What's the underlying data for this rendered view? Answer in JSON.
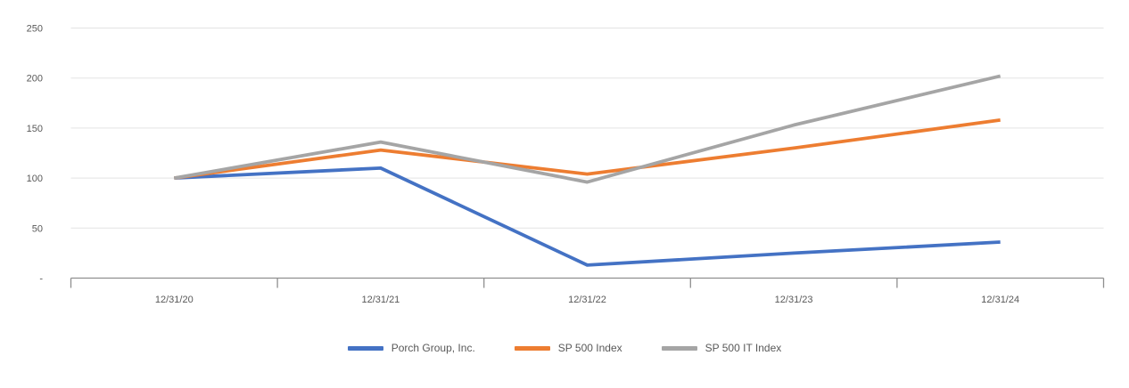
{
  "chart_data": {
    "type": "line",
    "categories": [
      "12/31/20",
      "12/31/21",
      "12/31/22",
      "12/31/23",
      "12/31/24"
    ],
    "series": [
      {
        "name": "Porch Group, Inc.",
        "color": "#4472C4",
        "values": [
          100,
          110,
          13,
          25,
          36
        ]
      },
      {
        "name": "SP 500 Index",
        "color": "#ED7D31",
        "values": [
          100,
          128,
          104,
          130,
          158
        ]
      },
      {
        "name": "SP 500 IT Index",
        "color": "#A5A5A5",
        "values": [
          100,
          136,
          96,
          153,
          202
        ]
      }
    ],
    "y_axis": {
      "range": [
        0,
        250
      ],
      "ticks": [
        {
          "value": 0,
          "label": "-"
        },
        {
          "value": 50,
          "label": "50"
        },
        {
          "value": 100,
          "label": "100"
        },
        {
          "value": 150,
          "label": "150"
        },
        {
          "value": 200,
          "label": "200"
        },
        {
          "value": 250,
          "label": "250"
        }
      ]
    },
    "grid": true,
    "legend_position": "bottom"
  },
  "styles": {
    "grid_color": "#E3E3E3",
    "axis_color": "#8F8F8F",
    "label_color": "#595959"
  }
}
